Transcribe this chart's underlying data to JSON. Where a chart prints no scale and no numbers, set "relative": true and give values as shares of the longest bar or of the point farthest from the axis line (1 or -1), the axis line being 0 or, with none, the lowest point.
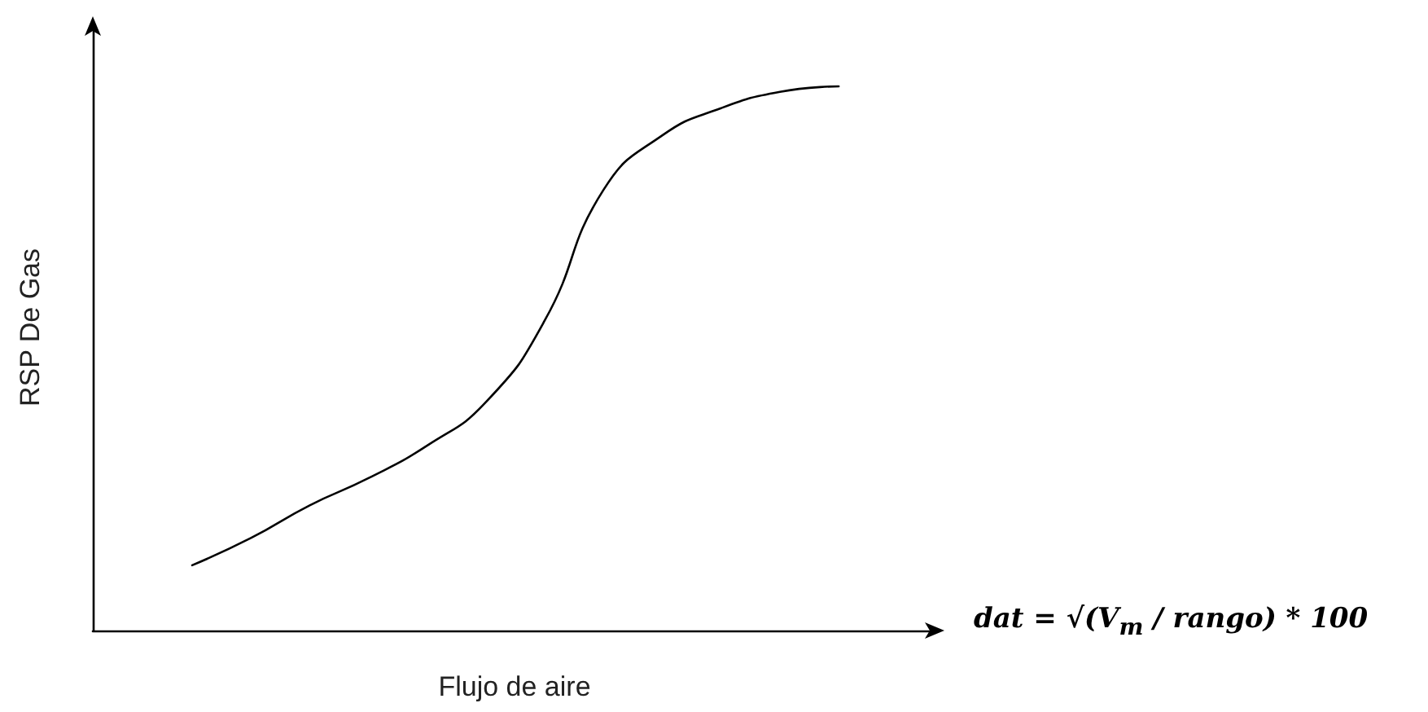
{
  "chart_data": {
    "type": "line",
    "relative": true,
    "xlabel": "Flujo de aire",
    "ylabel": "RSP De Gas",
    "categories": [
      null,
      null,
      null,
      null,
      null,
      null,
      null,
      null,
      null,
      null,
      null,
      null
    ],
    "series": [
      {
        "color": "#000000",
        "values": [
          0.12,
          0.17,
          0.23,
          0.28,
          0.34,
          0.42,
          0.57,
          0.81,
          0.91,
          0.96,
          0.99,
          1
        ]
      }
    ],
    "annotations": [
      "dat = √(V$_{m}$ / rango) * 100"
    ],
    "grid": false,
    "marker": "none",
    "line_style": "solid"
  }
}
